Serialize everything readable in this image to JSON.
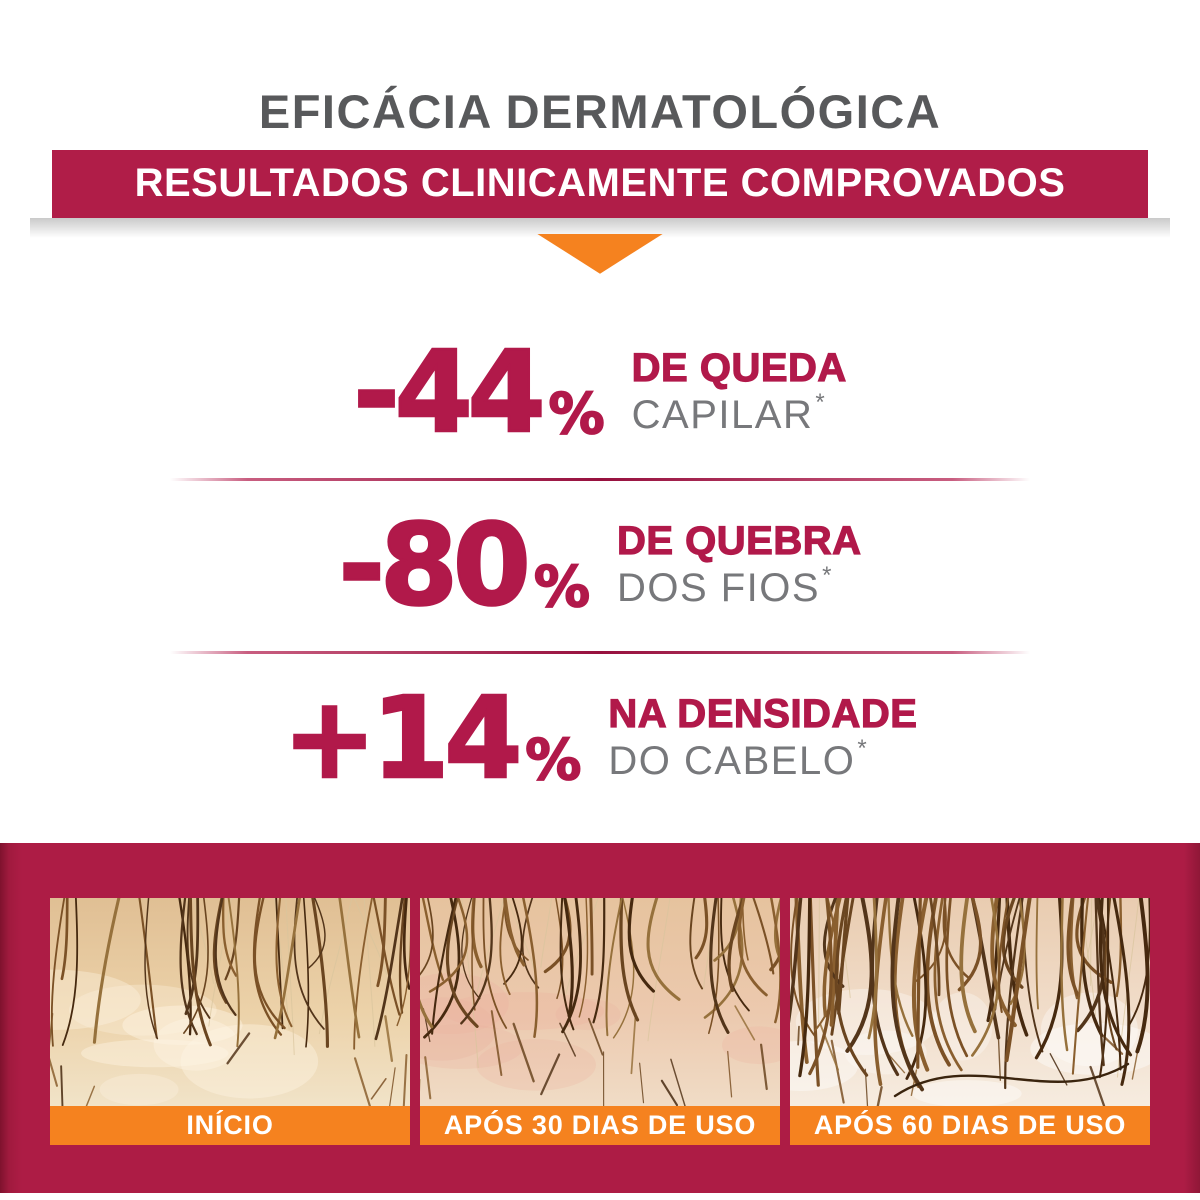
{
  "header": {
    "title": "EFICÁCIA DERMATOLÓGICA",
    "banner": "RESULTADOS CLINICAMENTE COMPROVADOS"
  },
  "stats": [
    {
      "value": "-44",
      "unit": "%",
      "line1": "DE QUEDA",
      "line2": "CAPILAR",
      "footnote_marker": "*"
    },
    {
      "value": "-80",
      "unit": "%",
      "line1": "DE QUEBRA",
      "line2": "DOS FIOS",
      "footnote_marker": "*"
    },
    {
      "value": "+14",
      "unit": "%",
      "line1": "NA DENSIDADE",
      "line2": "DO CABELO",
      "footnote_marker": "*"
    }
  ],
  "photos": [
    {
      "label": "INÍCIO"
    },
    {
      "label": "APÓS 30 DIAS DE USO"
    },
    {
      "label": "APÓS 60 DIAS DE USO"
    }
  ],
  "colors": {
    "crimson_text": "#b1194a",
    "banner_bg": "#b01d48",
    "band_bg": "#ad1c45",
    "orange": "#f5821f",
    "title_gray": "#58595b",
    "label_gray": "#77787b",
    "white": "#ffffff"
  }
}
